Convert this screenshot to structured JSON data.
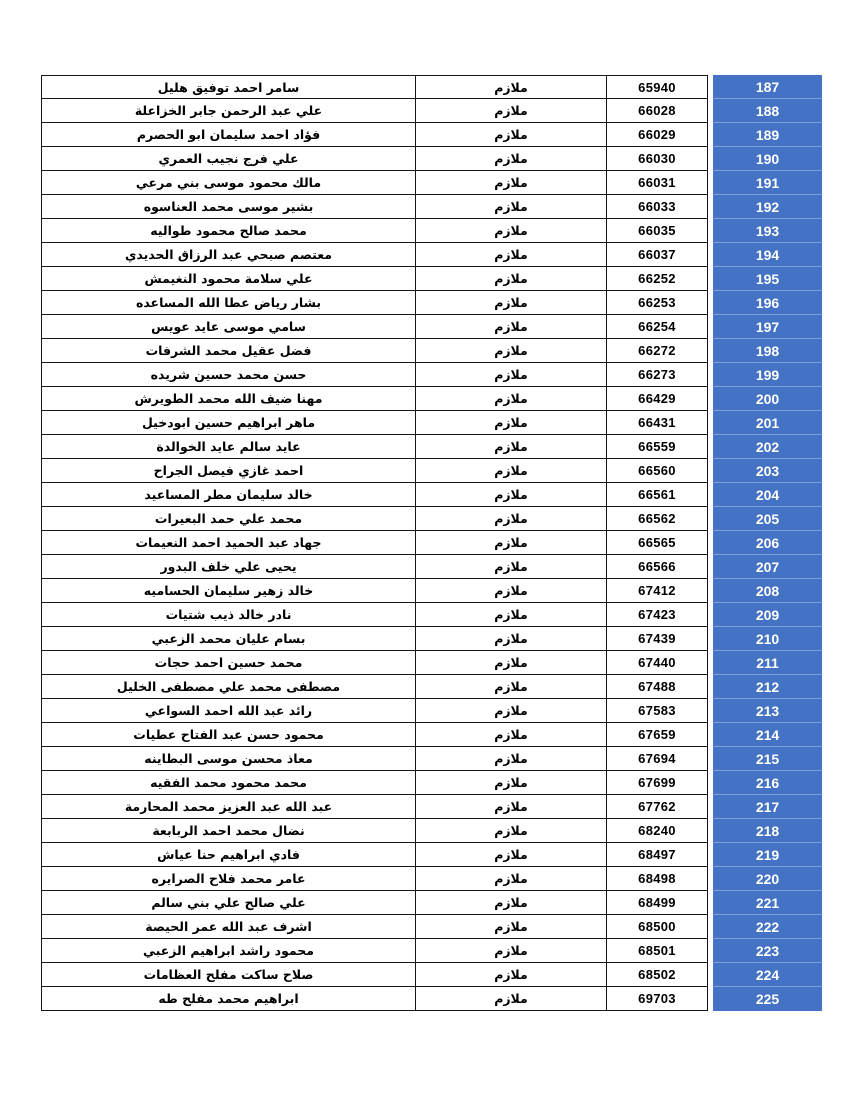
{
  "colors": {
    "index_highlight": "#4472C4",
    "index_text": "#FFFFFF",
    "grid_border": "#161616",
    "body_text": "#000000",
    "index_separator": "#7C9CD9"
  },
  "table": {
    "columns": [
      "name",
      "rank",
      "number",
      "index"
    ],
    "rows": [
      {
        "index": "187",
        "name": "سامر احمد توفيق هليل",
        "rank": "ملازم",
        "number": "65940"
      },
      {
        "index": "188",
        "name": "علي عبد الرحمن جابر الخزاعلة",
        "rank": "ملازم",
        "number": "66028"
      },
      {
        "index": "189",
        "name": "فؤاد احمد سليمان ابو الحصرم",
        "rank": "ملازم",
        "number": "66029"
      },
      {
        "index": "190",
        "name": "علي فرج نجيب العمري",
        "rank": "ملازم",
        "number": "66030"
      },
      {
        "index": "191",
        "name": "مالك محمود موسى بني مرعي",
        "rank": "ملازم",
        "number": "66031"
      },
      {
        "index": "192",
        "name": "بشير موسى محمد العناسوه",
        "rank": "ملازم",
        "number": "66033"
      },
      {
        "index": "193",
        "name": "محمد صالح محمود طواليه",
        "rank": "ملازم",
        "number": "66035"
      },
      {
        "index": "194",
        "name": "معتصم صبحي عبد الرزاق الحديدي",
        "rank": "ملازم",
        "number": "66037"
      },
      {
        "index": "195",
        "name": "علي سلامة محمود النغيمش",
        "rank": "ملازم",
        "number": "66252"
      },
      {
        "index": "196",
        "name": "بشار رياض عطا الله المساعده",
        "rank": "ملازم",
        "number": "66253"
      },
      {
        "index": "197",
        "name": "سامي موسى عايد عويس",
        "rank": "ملازم",
        "number": "66254"
      },
      {
        "index": "198",
        "name": "فضل عقيل محمد الشرفات",
        "rank": "ملازم",
        "number": "66272"
      },
      {
        "index": "199",
        "name": "حسن محمد حسين شريده",
        "rank": "ملازم",
        "number": "66273"
      },
      {
        "index": "200",
        "name": "مهنا ضيف الله محمد الطويرش",
        "rank": "ملازم",
        "number": "66429"
      },
      {
        "index": "201",
        "name": "ماهر ابراهيم حسين ابودخيل",
        "rank": "ملازم",
        "number": "66431"
      },
      {
        "index": "202",
        "name": "عايد سالم عايد الخوالدة",
        "rank": "ملازم",
        "number": "66559"
      },
      {
        "index": "203",
        "name": "احمد غازي فيصل الجراح",
        "rank": "ملازم",
        "number": "66560"
      },
      {
        "index": "204",
        "name": "خالد سليمان مطر المساعيد",
        "rank": "ملازم",
        "number": "66561"
      },
      {
        "index": "205",
        "name": "محمد علي حمد البعيرات",
        "rank": "ملازم",
        "number": "66562"
      },
      {
        "index": "206",
        "name": "جهاد عبد الحميد احمد النعيمات",
        "rank": "ملازم",
        "number": "66565"
      },
      {
        "index": "207",
        "name": "يحيى علي خلف البدور",
        "rank": "ملازم",
        "number": "66566"
      },
      {
        "index": "208",
        "name": "خالد زهير سليمان الحساميه",
        "rank": "ملازم",
        "number": "67412"
      },
      {
        "index": "209",
        "name": "نادر خالد ذيب شتيات",
        "rank": "ملازم",
        "number": "67423"
      },
      {
        "index": "210",
        "name": "بسام عليان محمد الزعبي",
        "rank": "ملازم",
        "number": "67439"
      },
      {
        "index": "211",
        "name": "محمد حسين احمد حجات",
        "rank": "ملازم",
        "number": "67440"
      },
      {
        "index": "212",
        "name": "مصطفى محمد علي مصطفى الخليل",
        "rank": "ملازم",
        "number": "67488"
      },
      {
        "index": "213",
        "name": "رائد عبد الله احمد السواعي",
        "rank": "ملازم",
        "number": "67583"
      },
      {
        "index": "214",
        "name": "محمود حسن عبد الفتاح عطيات",
        "rank": "ملازم",
        "number": "67659"
      },
      {
        "index": "215",
        "name": "معاذ محسن موسى البطاينه",
        "rank": "ملازم",
        "number": "67694"
      },
      {
        "index": "216",
        "name": "محمد محمود محمد الفقيه",
        "rank": "ملازم",
        "number": "67699"
      },
      {
        "index": "217",
        "name": "عبد الله عبد العزيز محمد المحارمة",
        "rank": "ملازم",
        "number": "67762"
      },
      {
        "index": "218",
        "name": "نضال محمد احمد الربابعة",
        "rank": "ملازم",
        "number": "68240"
      },
      {
        "index": "219",
        "name": "فادي ابراهيم حنا عياش",
        "rank": "ملازم",
        "number": "68497"
      },
      {
        "index": "220",
        "name": "عامر محمد فلاح الصرايره",
        "rank": "ملازم",
        "number": "68498"
      },
      {
        "index": "221",
        "name": "علي صالح علي بني سالم",
        "rank": "ملازم",
        "number": "68499"
      },
      {
        "index": "222",
        "name": "اشرف عبد الله عمر الحيصة",
        "rank": "ملازم",
        "number": "68500"
      },
      {
        "index": "223",
        "name": "محمود راشد ابراهيم الزعبي",
        "rank": "ملازم",
        "number": "68501"
      },
      {
        "index": "224",
        "name": "صلاح ساكت مفلح العظامات",
        "rank": "ملازم",
        "number": "68502"
      },
      {
        "index": "225",
        "name": "ابراهيم محمد مفلح طه",
        "rank": "ملازم",
        "number": "69703"
      }
    ]
  }
}
